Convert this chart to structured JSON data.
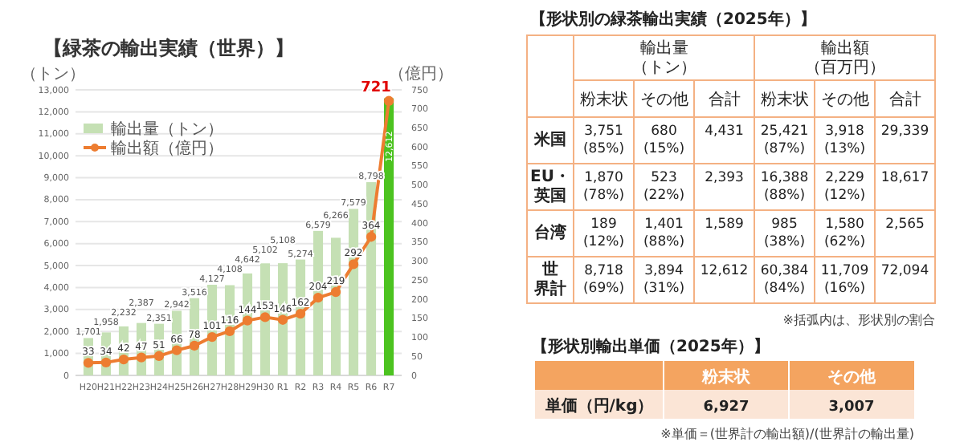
{
  "chart_data": [
    {
      "type": "bar",
      "title": "【緑茶の輸出実績（世界）】",
      "ylabel": "（トン）",
      "y2label": "（億円）",
      "categories": [
        "H20",
        "H21",
        "H22",
        "H23",
        "H24",
        "H25",
        "H26",
        "H27",
        "H28",
        "H29",
        "H30",
        "R1",
        "R2",
        "R3",
        "R4",
        "R5",
        "R6",
        "R7"
      ],
      "series": [
        {
          "type": "bar",
          "name": "輸出量（トン）",
          "colors": [
            "#c5e0b4",
            "#c5e0b4",
            "#c5e0b4",
            "#c5e0b4",
            "#c5e0b4",
            "#c5e0b4",
            "#c5e0b4",
            "#c5e0b4",
            "#c5e0b4",
            "#c5e0b4",
            "#c5e0b4",
            "#c5e0b4",
            "#c5e0b4",
            "#c5e0b4",
            "#c5e0b4",
            "#c5e0b4",
            "#c5e0b4",
            "#4cc320"
          ],
          "values": [
            1701,
            1958,
            2232,
            2387,
            2351,
            2942,
            3516,
            4127,
            4108,
            4642,
            5102,
            5108,
            5274,
            6579,
            6266,
            7579,
            8798,
            12612
          ],
          "value_labels": [
            "1,701",
            "1,958",
            "2,232",
            "2,387",
            "2,351",
            "2,942",
            "3,516",
            "4,127",
            "4,108",
            "4,642",
            "5,102",
            "5,108",
            "5,274",
            "6,579",
            "6,266",
            "7,579",
            "8,798",
            "12,612"
          ]
        },
        {
          "type": "line",
          "axis": "y2",
          "name": "輸出額（億円）",
          "color": "#ed7d31",
          "marker": "circle",
          "values": [
            33,
            34,
            42,
            47,
            51,
            66,
            78,
            101,
            116,
            144,
            153,
            146,
            162,
            204,
            219,
            292,
            364,
            721
          ],
          "value_labels": [
            "33",
            "34",
            "42",
            "47",
            "51",
            "66",
            "78",
            "101",
            "116",
            "144",
            "153",
            "146",
            "162",
            "204",
            "219",
            "292",
            "364",
            "721"
          ]
        }
      ],
      "ylim": [
        0,
        13000
      ],
      "yticks": [
        {
          "value": 0,
          "label": "0"
        },
        {
          "value": 1000,
          "label": "1,000"
        },
        {
          "value": 2000,
          "label": "2,000"
        },
        {
          "value": 3000,
          "label": "3,000"
        },
        {
          "value": 4000,
          "label": "4,000"
        },
        {
          "value": 5000,
          "label": "5,000"
        },
        {
          "value": 6000,
          "label": "6,000"
        },
        {
          "value": 7000,
          "label": "7,000"
        },
        {
          "value": 8000,
          "label": "8,000"
        },
        {
          "value": 9000,
          "label": "9,000"
        },
        {
          "value": 10000,
          "label": "10,000"
        },
        {
          "value": 11000,
          "label": "11,000"
        },
        {
          "value": 12000,
          "label": "12,000"
        },
        {
          "value": 13000,
          "label": "13,000"
        }
      ],
      "y2lim": [
        0,
        750
      ],
      "y2ticks": [
        0,
        50,
        100,
        150,
        200,
        250,
        300,
        350,
        400,
        450,
        500,
        550,
        600,
        650,
        700,
        750
      ],
      "grid": "y",
      "legend": "top left"
    },
    {
      "type": "other",
      "title": "【形状別の緑茶輸出実績（2025年）】",
      "annotations": [
        "輸出量（トン）",
        "輸出額（百万円）",
        "※括弧内は、形状別の割合"
      ],
      "categories": [
        "粉末状",
        "その他",
        "合計",
        "粉末状",
        "その他",
        "合計"
      ],
      "y_categories": [
        "米国",
        "EU・英国",
        "台湾",
        "世界計"
      ],
      "cell_labels": [
        [
          "3,751\n(85%)",
          "680\n(15%)",
          "4,431",
          "25,421\n(87%)",
          "3,918\n(13%)",
          "29,339"
        ],
        [
          "1,870\n(78%)",
          "523\n(22%)",
          "2,393",
          "16,388\n(88%)",
          "2,229\n(12%)",
          "18,617"
        ],
        [
          "189\n(12%)",
          "1,401\n(88%)",
          "1,589",
          "985\n(38%)",
          "1,580\n(62%)",
          "2,565"
        ],
        [
          "8,718\n(69%)",
          "3,894\n(31%)",
          "12,612",
          "60,384\n(84%)",
          "11,709\n(16%)",
          "72,094"
        ]
      ]
    },
    {
      "type": "other",
      "title": "【形状別輸出単価（2025年）】",
      "annotations": [
        "※単価＝(世界計の輸出額)/(世界計の輸出量)"
      ],
      "categories": [
        "粉末状",
        "その他"
      ],
      "y_categories": [
        "単価（円/kg）"
      ],
      "cell_labels": [
        [
          "6,927",
          "3,007"
        ]
      ]
    }
  ]
}
